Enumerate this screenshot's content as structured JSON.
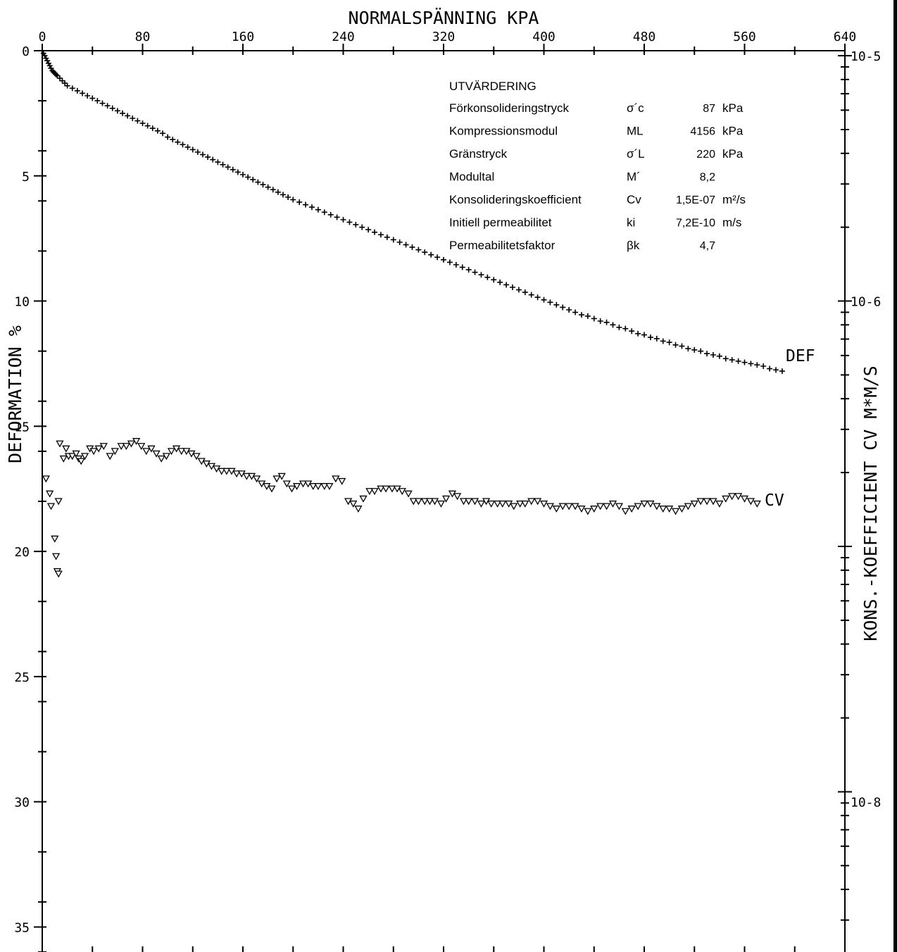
{
  "chart_data": {
    "type": "scatter",
    "top_axis": {
      "label": "NORMALSPÄNNING KPA",
      "range": [
        0,
        640
      ],
      "tick_labels": [
        "0",
        "80",
        "160",
        "240",
        "320",
        "400",
        "480",
        "560",
        "640"
      ]
    },
    "left_axis": {
      "label": "DEFORMATION %",
      "range": [
        0,
        36
      ],
      "inverted": true,
      "tick_labels": [
        "0",
        "5",
        "10",
        "15",
        "20",
        "25",
        "30",
        "35"
      ]
    },
    "right_axis": {
      "label": "KONS.-KOEFFICIENT CV M*M/S",
      "scale": "log",
      "tick_labels": [
        "10-5",
        "10-6",
        "",
        "10-8"
      ]
    },
    "grid": false,
    "series": [
      {
        "name": "DEF",
        "marker": "plus",
        "points": [
          [
            0,
            0
          ],
          [
            1,
            0.1
          ],
          [
            2,
            0.2
          ],
          [
            3,
            0.3
          ],
          [
            4,
            0.4
          ],
          [
            5,
            0.5
          ],
          [
            6,
            0.6
          ],
          [
            7,
            0.7
          ],
          [
            8,
            0.8
          ],
          [
            9,
            0.85
          ],
          [
            10,
            0.9
          ],
          [
            11,
            0.95
          ],
          [
            12,
            1.0
          ],
          [
            14,
            1.1
          ],
          [
            16,
            1.2
          ],
          [
            18,
            1.3
          ],
          [
            20,
            1.4
          ],
          [
            24,
            1.5
          ],
          [
            28,
            1.6
          ],
          [
            32,
            1.7
          ],
          [
            36,
            1.8
          ],
          [
            40,
            1.9
          ],
          [
            44,
            2.0
          ],
          [
            48,
            2.1
          ],
          [
            52,
            2.2
          ],
          [
            56,
            2.3
          ],
          [
            60,
            2.4
          ],
          [
            64,
            2.5
          ],
          [
            68,
            2.6
          ],
          [
            72,
            2.7
          ],
          [
            76,
            2.8
          ],
          [
            80,
            2.9
          ],
          [
            84,
            3.0
          ],
          [
            88,
            3.1
          ],
          [
            92,
            3.2
          ],
          [
            96,
            3.3
          ],
          [
            100,
            3.45
          ],
          [
            104,
            3.55
          ],
          [
            108,
            3.65
          ],
          [
            112,
            3.75
          ],
          [
            116,
            3.85
          ],
          [
            120,
            3.95
          ],
          [
            124,
            4.05
          ],
          [
            128,
            4.15
          ],
          [
            132,
            4.25
          ],
          [
            136,
            4.35
          ],
          [
            140,
            4.45
          ],
          [
            144,
            4.55
          ],
          [
            148,
            4.65
          ],
          [
            152,
            4.75
          ],
          [
            156,
            4.85
          ],
          [
            160,
            4.95
          ],
          [
            164,
            5.05
          ],
          [
            168,
            5.15
          ],
          [
            172,
            5.25
          ],
          [
            176,
            5.35
          ],
          [
            180,
            5.45
          ],
          [
            184,
            5.55
          ],
          [
            188,
            5.65
          ],
          [
            192,
            5.75
          ],
          [
            196,
            5.85
          ],
          [
            200,
            5.95
          ],
          [
            205,
            6.05
          ],
          [
            210,
            6.15
          ],
          [
            215,
            6.25
          ],
          [
            220,
            6.35
          ],
          [
            225,
            6.45
          ],
          [
            230,
            6.55
          ],
          [
            235,
            6.65
          ],
          [
            240,
            6.75
          ],
          [
            245,
            6.85
          ],
          [
            250,
            6.95
          ],
          [
            255,
            7.05
          ],
          [
            260,
            7.15
          ],
          [
            265,
            7.25
          ],
          [
            270,
            7.35
          ],
          [
            275,
            7.45
          ],
          [
            280,
            7.55
          ],
          [
            285,
            7.65
          ],
          [
            290,
            7.75
          ],
          [
            295,
            7.85
          ],
          [
            300,
            7.95
          ],
          [
            305,
            8.05
          ],
          [
            310,
            8.15
          ],
          [
            315,
            8.25
          ],
          [
            320,
            8.35
          ],
          [
            325,
            8.45
          ],
          [
            330,
            8.55
          ],
          [
            335,
            8.65
          ],
          [
            340,
            8.75
          ],
          [
            345,
            8.85
          ],
          [
            350,
            8.95
          ],
          [
            355,
            9.05
          ],
          [
            360,
            9.15
          ],
          [
            365,
            9.25
          ],
          [
            370,
            9.35
          ],
          [
            375,
            9.45
          ],
          [
            380,
            9.55
          ],
          [
            385,
            9.65
          ],
          [
            390,
            9.75
          ],
          [
            395,
            9.85
          ],
          [
            400,
            9.95
          ],
          [
            405,
            10.05
          ],
          [
            410,
            10.15
          ],
          [
            415,
            10.25
          ],
          [
            420,
            10.35
          ],
          [
            425,
            10.45
          ],
          [
            430,
            10.55
          ],
          [
            435,
            10.6
          ],
          [
            440,
            10.7
          ],
          [
            445,
            10.8
          ],
          [
            450,
            10.85
          ],
          [
            455,
            10.95
          ],
          [
            460,
            11.05
          ],
          [
            465,
            11.1
          ],
          [
            470,
            11.2
          ],
          [
            475,
            11.3
          ],
          [
            480,
            11.35
          ],
          [
            485,
            11.45
          ],
          [
            490,
            11.5
          ],
          [
            495,
            11.6
          ],
          [
            500,
            11.65
          ],
          [
            505,
            11.75
          ],
          [
            510,
            11.8
          ],
          [
            515,
            11.9
          ],
          [
            520,
            11.95
          ],
          [
            525,
            12.0
          ],
          [
            530,
            12.1
          ],
          [
            535,
            12.15
          ],
          [
            540,
            12.2
          ],
          [
            545,
            12.3
          ],
          [
            550,
            12.35
          ],
          [
            555,
            12.4
          ],
          [
            560,
            12.45
          ],
          [
            565,
            12.5
          ],
          [
            570,
            12.55
          ],
          [
            575,
            12.6
          ],
          [
            580,
            12.7
          ],
          [
            585,
            12.75
          ],
          [
            590,
            12.8
          ]
        ]
      },
      {
        "name": "CV",
        "marker": "triangle-down",
        "points": [
          [
            3,
            17.1
          ],
          [
            6,
            17.7
          ],
          [
            7,
            18.2
          ],
          [
            10,
            19.5
          ],
          [
            11,
            20.2
          ],
          [
            12,
            20.8
          ],
          [
            13,
            20.9
          ],
          [
            13,
            18.0
          ],
          [
            14,
            15.7
          ],
          [
            17,
            16.3
          ],
          [
            19,
            15.9
          ],
          [
            21,
            16.2
          ],
          [
            24,
            16.2
          ],
          [
            27,
            16.1
          ],
          [
            29,
            16.3
          ],
          [
            31,
            16.4
          ],
          [
            34,
            16.2
          ],
          [
            38,
            15.9
          ],
          [
            41,
            16.0
          ],
          [
            45,
            15.9
          ],
          [
            49,
            15.8
          ],
          [
            54,
            16.2
          ],
          [
            58,
            16.0
          ],
          [
            63,
            15.8
          ],
          [
            67,
            15.8
          ],
          [
            71,
            15.7
          ],
          [
            75,
            15.6
          ],
          [
            79,
            15.8
          ],
          [
            83,
            16.0
          ],
          [
            87,
            15.9
          ],
          [
            91,
            16.1
          ],
          [
            95,
            16.3
          ],
          [
            99,
            16.2
          ],
          [
            103,
            16.0
          ],
          [
            107,
            15.9
          ],
          [
            111,
            16.0
          ],
          [
            115,
            16.0
          ],
          [
            119,
            16.1
          ],
          [
            123,
            16.2
          ],
          [
            127,
            16.4
          ],
          [
            131,
            16.5
          ],
          [
            135,
            16.6
          ],
          [
            139,
            16.7
          ],
          [
            143,
            16.8
          ],
          [
            147,
            16.8
          ],
          [
            151,
            16.8
          ],
          [
            155,
            16.9
          ],
          [
            159,
            16.9
          ],
          [
            163,
            17.0
          ],
          [
            167,
            17.0
          ],
          [
            171,
            17.1
          ],
          [
            175,
            17.3
          ],
          [
            179,
            17.4
          ],
          [
            183,
            17.5
          ],
          [
            187,
            17.1
          ],
          [
            191,
            17.0
          ],
          [
            195,
            17.3
          ],
          [
            199,
            17.5
          ],
          [
            203,
            17.4
          ],
          [
            208,
            17.3
          ],
          [
            212,
            17.3
          ],
          [
            216,
            17.4
          ],
          [
            220,
            17.4
          ],
          [
            225,
            17.4
          ],
          [
            229,
            17.4
          ],
          [
            234,
            17.1
          ],
          [
            239,
            17.2
          ],
          [
            244,
            18.0
          ],
          [
            248,
            18.1
          ],
          [
            252,
            18.3
          ],
          [
            256,
            17.9
          ],
          [
            261,
            17.6
          ],
          [
            265,
            17.6
          ],
          [
            270,
            17.5
          ],
          [
            274,
            17.5
          ],
          [
            279,
            17.5
          ],
          [
            283,
            17.5
          ],
          [
            287,
            17.6
          ],
          [
            292,
            17.7
          ],
          [
            296,
            18.0
          ],
          [
            300,
            18.0
          ],
          [
            305,
            18.0
          ],
          [
            309,
            18.0
          ],
          [
            313,
            18.0
          ],
          [
            318,
            18.1
          ],
          [
            322,
            17.9
          ],
          [
            327,
            17.7
          ],
          [
            331,
            17.8
          ],
          [
            336,
            18.0
          ],
          [
            340,
            18.0
          ],
          [
            345,
            18.0
          ],
          [
            350,
            18.1
          ],
          [
            354,
            18.0
          ],
          [
            358,
            18.1
          ],
          [
            363,
            18.1
          ],
          [
            367,
            18.1
          ],
          [
            372,
            18.1
          ],
          [
            376,
            18.2
          ],
          [
            381,
            18.1
          ],
          [
            385,
            18.1
          ],
          [
            390,
            18.0
          ],
          [
            395,
            18.0
          ],
          [
            400,
            18.1
          ],
          [
            405,
            18.2
          ],
          [
            410,
            18.3
          ],
          [
            415,
            18.2
          ],
          [
            420,
            18.2
          ],
          [
            425,
            18.2
          ],
          [
            430,
            18.3
          ],
          [
            435,
            18.4
          ],
          [
            440,
            18.3
          ],
          [
            445,
            18.2
          ],
          [
            450,
            18.2
          ],
          [
            455,
            18.1
          ],
          [
            460,
            18.2
          ],
          [
            465,
            18.4
          ],
          [
            470,
            18.3
          ],
          [
            475,
            18.2
          ],
          [
            480,
            18.1
          ],
          [
            485,
            18.1
          ],
          [
            490,
            18.2
          ],
          [
            495,
            18.3
          ],
          [
            500,
            18.3
          ],
          [
            505,
            18.4
          ],
          [
            510,
            18.3
          ],
          [
            515,
            18.2
          ],
          [
            520,
            18.1
          ],
          [
            525,
            18.0
          ],
          [
            530,
            18.0
          ],
          [
            535,
            18.0
          ],
          [
            540,
            18.1
          ],
          [
            545,
            17.9
          ],
          [
            550,
            17.8
          ],
          [
            555,
            17.8
          ],
          [
            560,
            17.9
          ],
          [
            565,
            18.0
          ],
          [
            570,
            18.1
          ]
        ]
      }
    ],
    "series_labels": [
      "DEF",
      "CV"
    ]
  },
  "evaluation_box": {
    "title": "UTVÄRDERING",
    "rows": [
      {
        "name": "Förkonsolideringstryck",
        "symbol": "σ´c",
        "value": "87",
        "unit": "kPa"
      },
      {
        "name": "Kompressionsmodul",
        "symbol": "ML",
        "value": "4156",
        "unit": "kPa"
      },
      {
        "name": "Gränstryck",
        "symbol": "σ´L",
        "value": "220",
        "unit": "kPa"
      },
      {
        "name": "Modultal",
        "symbol": "M´",
        "value": "8,2",
        "unit": ""
      },
      {
        "name": "Konsolideringskoefficient",
        "symbol": "Cv",
        "value": "1,5E-07",
        "unit": "m²/s"
      },
      {
        "name": "Initiell permeabilitet",
        "symbol": "ki",
        "value": "7,2E-10",
        "unit": "m/s"
      },
      {
        "name": "Permeabilitetsfaktor",
        "symbol": "βk",
        "value": "4,7",
        "unit": ""
      }
    ]
  }
}
